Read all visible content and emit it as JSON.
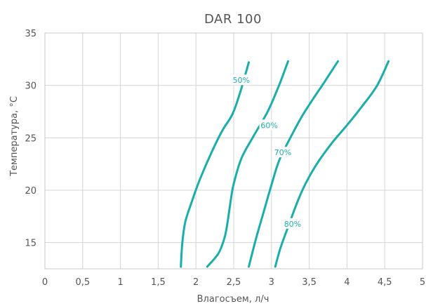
{
  "chart_data": {
    "type": "line",
    "title": "DAR 100",
    "xlabel": "Влагосъем, л/ч",
    "ylabel": "Температура, °C",
    "xlim": [
      0,
      5
    ],
    "ylim": [
      12.5,
      35
    ],
    "x_ticks": [
      {
        "v": 0,
        "label": "0"
      },
      {
        "v": 0.5,
        "label": "0,5"
      },
      {
        "v": 1,
        "label": "1"
      },
      {
        "v": 1.5,
        "label": "1,5"
      },
      {
        "v": 2,
        "label": "2"
      },
      {
        "v": 2.5,
        "label": "2,5"
      },
      {
        "v": 3,
        "label": "3"
      },
      {
        "v": 3.5,
        "label": "3,5"
      },
      {
        "v": 4,
        "label": "4"
      },
      {
        "v": 4.5,
        "label": "4,5"
      },
      {
        "v": 5,
        "label": "5"
      }
    ],
    "y_ticks": [
      {
        "v": 15,
        "label": "15"
      },
      {
        "v": 20,
        "label": "20"
      },
      {
        "v": 25,
        "label": "25"
      },
      {
        "v": 30,
        "label": "30"
      },
      {
        "v": 35,
        "label": "35"
      }
    ],
    "grid": true,
    "color": "#1aaeaa",
    "series": [
      {
        "name": "50%",
        "label_at": {
          "x": 2.6,
          "y": 30.5
        },
        "points": [
          [
            1.8,
            12.7
          ],
          [
            1.82,
            15
          ],
          [
            1.86,
            17
          ],
          [
            1.95,
            19
          ],
          [
            2.05,
            21
          ],
          [
            2.2,
            23.5
          ],
          [
            2.35,
            25.7
          ],
          [
            2.48,
            27.2
          ],
          [
            2.58,
            29.2
          ],
          [
            2.7,
            32.2
          ]
        ]
      },
      {
        "name": "60%",
        "label_at": {
          "x": 2.97,
          "y": 26.2
        },
        "points": [
          [
            2.15,
            12.7
          ],
          [
            2.3,
            14
          ],
          [
            2.38,
            15.5
          ],
          [
            2.42,
            17
          ],
          [
            2.46,
            19
          ],
          [
            2.5,
            20.6
          ],
          [
            2.6,
            23
          ],
          [
            2.75,
            25
          ],
          [
            2.95,
            27.5
          ],
          [
            3.1,
            30
          ],
          [
            3.22,
            32.3
          ]
        ]
      },
      {
        "name": "70%",
        "label_at": {
          "x": 3.15,
          "y": 23.6
        },
        "points": [
          [
            2.7,
            12.7
          ],
          [
            2.8,
            15.5
          ],
          [
            2.9,
            18
          ],
          [
            3.0,
            20.5
          ],
          [
            3.1,
            22.8
          ],
          [
            3.25,
            25
          ],
          [
            3.4,
            27
          ],
          [
            3.55,
            28.7
          ],
          [
            3.7,
            30.3
          ],
          [
            3.88,
            32.3
          ]
        ]
      },
      {
        "name": "80%",
        "label_at": {
          "x": 3.28,
          "y": 16.8
        },
        "points": [
          [
            3.05,
            12.7
          ],
          [
            3.12,
            14.5
          ],
          [
            3.22,
            16.5
          ],
          [
            3.35,
            19
          ],
          [
            3.45,
            20.6
          ],
          [
            3.6,
            22.5
          ],
          [
            3.8,
            24.5
          ],
          [
            4.0,
            26.2
          ],
          [
            4.2,
            28
          ],
          [
            4.4,
            30
          ],
          [
            4.55,
            32.3
          ]
        ]
      }
    ]
  }
}
